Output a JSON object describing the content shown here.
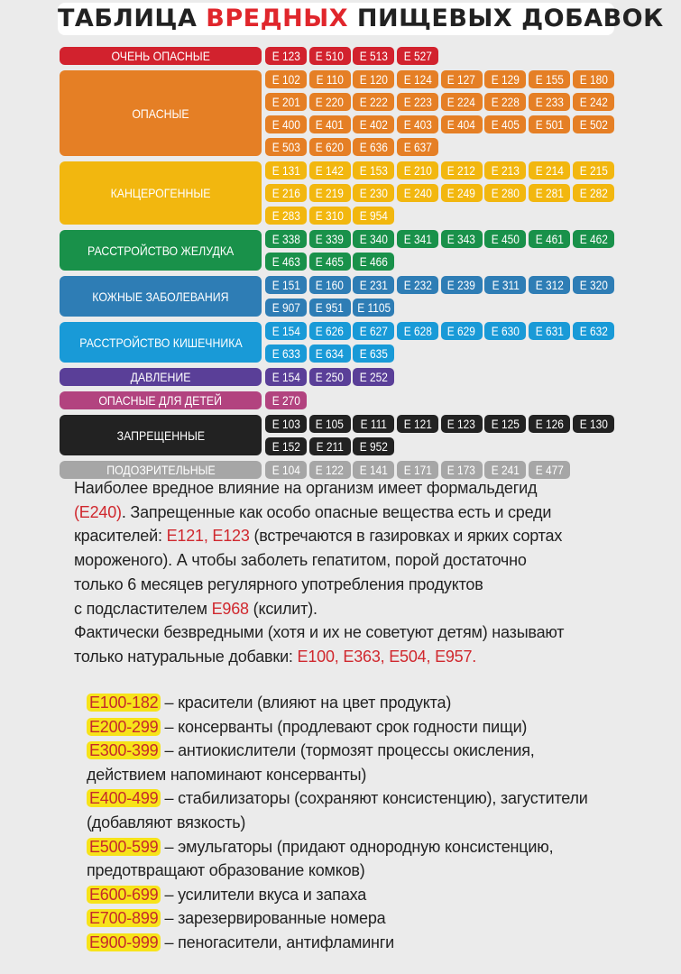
{
  "title": {
    "part1": "ТАБЛИЦА ",
    "part2": "ВРЕДНЫХ",
    "part3": " ПИЩЕВЫХ ДОБАВОК"
  },
  "groups": [
    {
      "label": "Очень опасные",
      "color": "#d2222e",
      "codes": [
        "E 123",
        "E 510",
        "E 513",
        "E 527"
      ]
    },
    {
      "label": "Опасные",
      "color": "#e57f25",
      "codes": [
        "E 102",
        "E 110",
        "E 120",
        "E 124",
        "E 127",
        "E 129",
        "E 155",
        "E 180",
        "E 201",
        "E 220",
        "E 222",
        "E 223",
        "E 224",
        "E 228",
        "E 233",
        "E 242",
        "E 400",
        "E 401",
        "E 402",
        "E 403",
        "E 404",
        "E 405",
        "E 501",
        "E 502",
        "E 503",
        "E 620",
        "E 636",
        "E 637"
      ]
    },
    {
      "label": "Канцерогенные",
      "color": "#f2b70f",
      "codes": [
        "E 131",
        "E 142",
        "E 153",
        "E 210",
        "E 212",
        "E 213",
        "E 214",
        "E 215",
        "E 216",
        "E 219",
        "E 230",
        "E 240",
        "E 249",
        "E 280",
        "E 281",
        "E 282",
        "E 283",
        "E 310",
        "E 954"
      ]
    },
    {
      "label": "Расстройство желудка",
      "color": "#19914a",
      "codes": [
        "E 338",
        "E 339",
        "E 340",
        "E 341",
        "E 343",
        "E 450",
        "E 461",
        "E 462",
        "E 463",
        "E 465",
        "E 466"
      ]
    },
    {
      "label": "Кожные заболевания",
      "color": "#2e7db5",
      "codes": [
        "E 151",
        "E 160",
        "E 231",
        "E 232",
        "E 239",
        "E 311",
        "E 312",
        "E 320",
        "E 907",
        "E 951",
        "E 1105"
      ]
    },
    {
      "label": "Расстройство кишечника",
      "color": "#199ad7",
      "codes": [
        "E 154",
        "E 626",
        "E 627",
        "E 628",
        "E 629",
        "E 630",
        "E 631",
        "E 632",
        "E 633",
        "E 634",
        "E 635"
      ]
    },
    {
      "label": "Давление",
      "color": "#5a3f98",
      "codes": [
        "E 154",
        "E 250",
        "E 252"
      ]
    },
    {
      "label": "Опасные для детей",
      "color": "#b2437f",
      "codes": [
        "E 270"
      ]
    },
    {
      "label": "Запрещенные",
      "color": "#222222",
      "codes": [
        "E 103",
        "E 105",
        "E 111",
        "E 121",
        "E 123",
        "E 125",
        "E 126",
        "E 130",
        "E 152",
        "E 211",
        "E 952"
      ]
    },
    {
      "label": "Подозрительные",
      "color": "#a6a6a6",
      "codes": [
        "E 104",
        "E 122",
        "E 141",
        "E 171",
        "E 173",
        "E 241",
        "E 477"
      ]
    }
  ],
  "paragraph": {
    "l1": "Наиболее вредное влияние на организм имеет формальдегид",
    "l2a": "(E240)",
    "l2b": ". Запрещенные как особо опасные вещества есть и среди",
    "l3a": "красителей: ",
    "l3b": "E121, E123",
    "l3c": " (встречаются в газировках и ярких сортах",
    "l4": "мороженого). А чтобы заболеть гепатитом, порой достаточно",
    "l5": "только 6 месяцев регулярного употребления продуктов",
    "l6a": "с подсластителем ",
    "l6b": "E968",
    "l6c": " (ксилит).",
    "l7": "Фактически безвредными (хотя и их не советуют детям) называют",
    "l8a": "только натуральные добавки: ",
    "l8b": "E100, E363, E504, E957."
  },
  "legend": [
    {
      "range": "E100-182",
      "text": "– красители (влияют на цвет продукта)"
    },
    {
      "range": "E200-299",
      "text": "– консерванты (продлевают срок годности пищи)"
    },
    {
      "range": "E300-399",
      "text": "– антиокислители (тормозят процессы окисления,",
      "cont": "действием напоминают консерванты)"
    },
    {
      "range": "E400-499",
      "text": "– стабилизаторы (сохраняют консистенцию), загустители",
      "cont": "(добавляют вязкость)"
    },
    {
      "range": "E500-599",
      "text": "– эмульгаторы (придают однородную консистенцию,",
      "cont": "предотвращают образование комков)"
    },
    {
      "range": "E600-699",
      "text": "– усилители вкуса и запаха"
    },
    {
      "range": "E700-899",
      "text": "– зарезервированные номера"
    },
    {
      "range": "E900-999",
      "text": "– пеногасители, антифламинги"
    }
  ]
}
